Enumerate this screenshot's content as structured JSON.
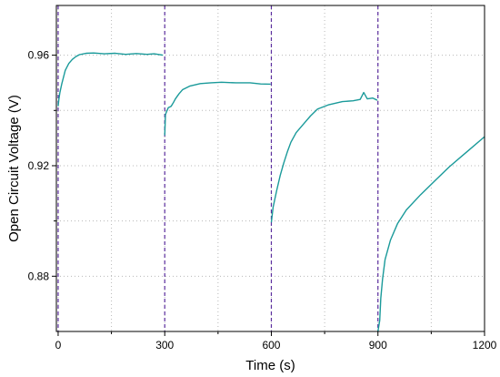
{
  "chart_data": {
    "type": "line",
    "title": "",
    "xlabel": "Time (s)",
    "ylabel": "Open Circuit Voltage (V)",
    "xlim": [
      -5,
      1200
    ],
    "ylim": [
      0.86,
      0.978
    ],
    "x_ticks": [
      0,
      300,
      600,
      900,
      1200
    ],
    "x_tick_labels": [
      "0",
      "300",
      "600",
      "900",
      "1200"
    ],
    "y_ticks": [
      0.88,
      0.92,
      0.96
    ],
    "y_tick_labels": [
      "0.88",
      "0.92",
      "0.96"
    ],
    "grid": true,
    "legend": "none",
    "line_color": "#1a9a9a",
    "marker_color": "#5b2d9e",
    "vertical_markers": [
      0,
      300,
      600,
      900
    ],
    "series": [
      {
        "segments": [
          [
            [
              0,
              0.9415
            ],
            [
              2,
              0.944
            ],
            [
              5,
              0.9465
            ],
            [
              10,
              0.9495
            ],
            [
              15,
              0.952
            ],
            [
              20,
              0.9545
            ],
            [
              30,
              0.957
            ],
            [
              40,
              0.9585
            ],
            [
              50,
              0.9595
            ],
            [
              60,
              0.9602
            ],
            [
              80,
              0.9607
            ],
            [
              100,
              0.9608
            ],
            [
              130,
              0.9605
            ],
            [
              160,
              0.9607
            ],
            [
              190,
              0.9603
            ],
            [
              220,
              0.9606
            ],
            [
              250,
              0.9603
            ],
            [
              270,
              0.9605
            ],
            [
              295,
              0.96
            ]
          ],
          [
            [
              300,
              0.931
            ],
            [
              302,
              0.9385
            ],
            [
              305,
              0.9395
            ],
            [
              310,
              0.941
            ],
            [
              318,
              0.9415
            ],
            [
              325,
              0.943
            ],
            [
              330,
              0.9442
            ],
            [
              340,
              0.946
            ],
            [
              350,
              0.9475
            ],
            [
              370,
              0.9488
            ],
            [
              400,
              0.9497
            ],
            [
              430,
              0.95
            ],
            [
              460,
              0.9502
            ],
            [
              500,
              0.95
            ],
            [
              540,
              0.95
            ],
            [
              570,
              0.9496
            ],
            [
              598,
              0.9495
            ]
          ],
          [
            [
              600,
              0.8995
            ],
            [
              605,
              0.905
            ],
            [
              615,
              0.911
            ],
            [
              625,
              0.9165
            ],
            [
              635,
              0.921
            ],
            [
              645,
              0.925
            ],
            [
              655,
              0.9285
            ],
            [
              670,
              0.932
            ],
            [
              690,
              0.935
            ],
            [
              710,
              0.938
            ],
            [
              730,
              0.9405
            ],
            [
              760,
              0.942
            ],
            [
              800,
              0.9432
            ],
            [
              830,
              0.9435
            ],
            [
              850,
              0.944
            ],
            [
              860,
              0.9465
            ],
            [
              870,
              0.9442
            ],
            [
              885,
              0.9445
            ],
            [
              898,
              0.9437
            ]
          ],
          [
            [
              900,
              0.86
            ],
            [
              905,
              0.864
            ],
            [
              908,
              0.872
            ],
            [
              913,
              0.879
            ],
            [
              920,
              0.886
            ],
            [
              935,
              0.893
            ],
            [
              955,
              0.899
            ],
            [
              980,
              0.904
            ],
            [
              1020,
              0.9095
            ],
            [
              1060,
              0.9145
            ],
            [
              1100,
              0.9195
            ],
            [
              1150,
              0.925
            ],
            [
              1200,
              0.9305
            ]
          ]
        ]
      }
    ]
  }
}
